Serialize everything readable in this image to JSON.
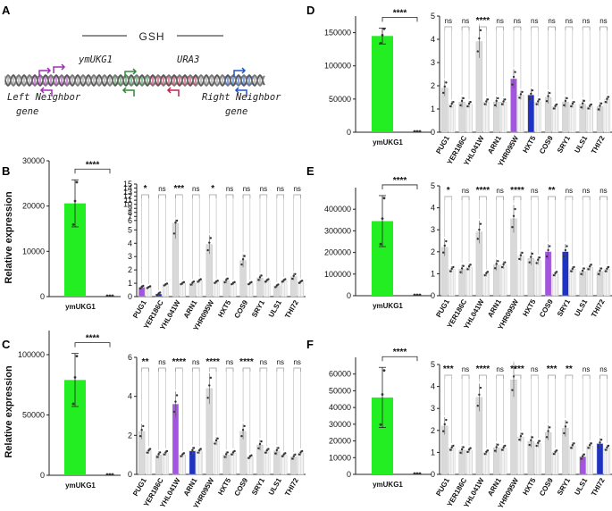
{
  "panel_a": {
    "label": "A",
    "gsh_label": "GSH",
    "cassette_labels": [
      "ymUKG1",
      "URA3"
    ],
    "left_neighbor": [
      "Left Neighbor",
      "gene"
    ],
    "right_neighbor": [
      "Right Neighbor",
      "gene"
    ]
  },
  "shared": {
    "ylabel": "Relative expression",
    "single_category": "ymUKG1",
    "neighbors": [
      "PUG1",
      "YER186C",
      "YHL041W",
      "ARN1",
      "YHR095W",
      "HXT5",
      "COS9",
      "SRY1",
      "ULS1",
      "THI72"
    ]
  },
  "colors": {
    "induced": "#22ee22",
    "highlight_purple": "#a455e0",
    "highlight_blue": "#1f32c4",
    "grey": "#d9d9d9",
    "light": "#f1f1f1",
    "purple_cassette": "#a32bb8",
    "green_cassette": "#2e8a38",
    "red_cassette": "#c2204a",
    "blue_cassette": "#1f55c8"
  },
  "chart_data": [
    {
      "panel": "B",
      "type": "bar",
      "title": "",
      "single": {
        "category": "ymUKG1",
        "values": [
          20600,
          0
        ],
        "err": [
          5200,
          0
        ],
        "ylim": [
          0,
          30000
        ],
        "yticks": [
          0,
          10000,
          20000,
          30000
        ],
        "sig": "****"
      },
      "multi": {
        "broken_axis": true,
        "yticks": [
          0,
          1,
          2,
          3,
          4,
          5,
          6,
          7,
          8,
          9,
          10,
          11,
          12,
          13,
          14,
          15
        ],
        "first": [
          0.7,
          0.2,
          5.3,
          1.0,
          3.9,
          1.2,
          2.7,
          1.4,
          0.8,
          1.5
        ],
        "second": [
          0.7,
          0.9,
          1.0,
          1.2,
          1.1,
          1.0,
          1.0,
          1.2,
          1.2,
          1.1
        ],
        "highlight": {
          "0": "purple",
          "1": "blue"
        },
        "sig": [
          "*",
          "ns",
          "***",
          "ns",
          "*",
          "ns",
          "ns",
          "ns",
          "ns",
          "ns"
        ]
      }
    },
    {
      "panel": "C",
      "type": "bar",
      "title": "",
      "single": {
        "category": "ymUKG1",
        "values": [
          79000,
          0
        ],
        "err": [
          22000,
          0
        ],
        "ylim": [
          0,
          120000
        ],
        "yticks": [
          0,
          50000,
          100000
        ],
        "sig": "****"
      },
      "multi": {
        "broken_axis": false,
        "ylim": [
          0,
          6
        ],
        "yticks": [
          0,
          2,
          4,
          6
        ],
        "first": [
          2.2,
          1.0,
          3.6,
          1.2,
          4.4,
          1.0,
          2.2,
          1.5,
          1.2,
          0.9
        ],
        "second": [
          1.2,
          1.1,
          1.0,
          1.2,
          1.7,
          1.1,
          0.9,
          1.2,
          1.0,
          1.1
        ],
        "highlight": {
          "2": "purple",
          "3": "blue"
        },
        "sig": [
          "**",
          "ns",
          "****",
          "ns",
          "****",
          "ns",
          "****",
          "ns",
          "ns",
          "ns"
        ]
      }
    },
    {
      "panel": "D",
      "type": "bar",
      "title": "",
      "single": {
        "category": "ymUKG1",
        "values": [
          145000,
          0
        ],
        "err": [
          12000,
          0
        ],
        "ylim": [
          0,
          175000
        ],
        "yticks": [
          0,
          50000,
          100000,
          150000
        ],
        "sig": "****"
      },
      "multi": {
        "broken_axis": false,
        "ylim": [
          0,
          5
        ],
        "yticks": [
          0,
          1,
          2,
          3,
          4,
          5
        ],
        "first": [
          1.9,
          1.3,
          3.9,
          1.3,
          2.3,
          1.6,
          1.5,
          1.3,
          1.2,
          1.1
        ],
        "second": [
          1.2,
          1.2,
          1.3,
          1.3,
          1.6,
          1.3,
          1.1,
          1.2,
          1.1,
          1.4
        ],
        "highlight": {
          "4": "purple",
          "5": "blue"
        },
        "sig": [
          "ns",
          "ns",
          "****",
          "ns",
          "ns",
          "ns",
          "ns",
          "ns",
          "ns",
          "ns"
        ]
      }
    },
    {
      "panel": "E",
      "type": "bar",
      "title": "",
      "single": {
        "category": "ymUKG1",
        "values": [
          345000,
          0
        ],
        "err": [
          118000,
          0
        ],
        "ylim": [
          0,
          500000
        ],
        "yticks": [
          0,
          100000,
          200000,
          300000,
          400000
        ],
        "sig": "****"
      },
      "multi": {
        "broken_axis": false,
        "ylim": [
          0,
          5
        ],
        "yticks": [
          0,
          1,
          2,
          3,
          4,
          5
        ],
        "first": [
          2.2,
          1.2,
          2.9,
          1.4,
          3.5,
          1.7,
          2.0,
          2.0,
          1.1,
          1.1
        ],
        "second": [
          1.2,
          1.3,
          1.0,
          1.4,
          1.8,
          1.6,
          1.0,
          1.2,
          1.3,
          1.2
        ],
        "highlight": {
          "6": "purple",
          "7": "blue"
        },
        "sig": [
          "*",
          "ns",
          "****",
          "ns",
          "****",
          "ns",
          "**",
          "ns",
          "ns",
          "ns"
        ]
      }
    },
    {
      "panel": "F",
      "type": "bar",
      "title": "",
      "single": {
        "category": "ymUKG1",
        "values": [
          46000,
          0
        ],
        "err": [
          18000,
          0
        ],
        "ylim": [
          0,
          70000
        ],
        "yticks": [
          0,
          10000,
          20000,
          30000,
          40000,
          50000,
          60000
        ],
        "sig": "****"
      },
      "multi": {
        "broken_axis": false,
        "ylim": [
          0,
          5
        ],
        "yticks": [
          0,
          1,
          2,
          3,
          4,
          5
        ],
        "first": [
          2.2,
          1.1,
          3.5,
          1.2,
          4.3,
          1.5,
          1.9,
          2.1,
          0.8,
          1.4
        ],
        "second": [
          1.2,
          1.1,
          1.0,
          1.2,
          1.7,
          1.4,
          1.0,
          1.3,
          1.3,
          1.2
        ],
        "highlight": {
          "8": "purple",
          "9": "blue"
        },
        "sig": [
          "***",
          "ns",
          "****",
          "ns",
          "****",
          "ns",
          "***",
          "**",
          "ns",
          "ns"
        ]
      }
    }
  ]
}
